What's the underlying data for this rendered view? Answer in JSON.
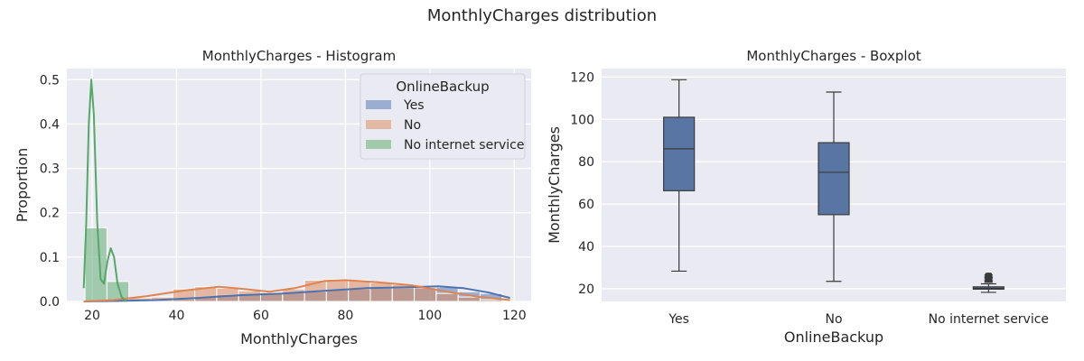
{
  "figure": {
    "title": "MonthlyCharges distribution"
  },
  "colors": {
    "panel_bg": "#EAEAF2",
    "grid": "#FFFFFF",
    "text": "#262626",
    "box_edge": "#3A3A3A"
  },
  "chart_data": [
    {
      "type": "histogram",
      "title": "MonthlyCharges - Histogram",
      "xlabel": "MonthlyCharges",
      "ylabel": "Proportion",
      "xlim": [
        14,
        124
      ],
      "ylim": [
        0,
        0.525
      ],
      "xticks": [
        "20",
        "40",
        "60",
        "80",
        "100",
        "120"
      ],
      "yticks": [
        "0.0",
        "0.1",
        "0.2",
        "0.3",
        "0.4",
        "0.5"
      ],
      "grid": true,
      "legend": {
        "title": "OnlineBackup",
        "placement": "top-right"
      },
      "bin_width": 5.2,
      "series": [
        {
          "name": "Yes",
          "color": "#4C72B0",
          "bins": [
            {
              "x0": 18.3,
              "h": 0.0
            },
            {
              "x0": 23.5,
              "h": 0.0
            },
            {
              "x0": 28.7,
              "h": 0.002
            },
            {
              "x0": 33.9,
              "h": 0.003
            },
            {
              "x0": 39.1,
              "h": 0.005
            },
            {
              "x0": 44.3,
              "h": 0.01
            },
            {
              "x0": 49.5,
              "h": 0.015
            },
            {
              "x0": 54.7,
              "h": 0.018
            },
            {
              "x0": 59.9,
              "h": 0.02
            },
            {
              "x0": 65.1,
              "h": 0.02
            },
            {
              "x0": 70.3,
              "h": 0.022
            },
            {
              "x0": 75.5,
              "h": 0.026
            },
            {
              "x0": 80.7,
              "h": 0.028
            },
            {
              "x0": 85.9,
              "h": 0.03
            },
            {
              "x0": 91.1,
              "h": 0.03
            },
            {
              "x0": 96.3,
              "h": 0.03
            },
            {
              "x0": 101.5,
              "h": 0.032
            },
            {
              "x0": 106.7,
              "h": 0.022
            },
            {
              "x0": 111.9,
              "h": 0.018
            }
          ],
          "kde": [
            [
              18,
              0.0
            ],
            [
              25,
              0.001
            ],
            [
              35,
              0.003
            ],
            [
              45,
              0.008
            ],
            [
              55,
              0.014
            ],
            [
              65,
              0.018
            ],
            [
              75,
              0.024
            ],
            [
              85,
              0.03
            ],
            [
              95,
              0.032
            ],
            [
              102,
              0.034
            ],
            [
              108,
              0.03
            ],
            [
              114,
              0.02
            ],
            [
              119,
              0.008
            ]
          ]
        },
        {
          "name": "No",
          "color": "#DD8452",
          "bins": [
            {
              "x0": 18.3,
              "h": 0.0
            },
            {
              "x0": 23.5,
              "h": 0.002
            },
            {
              "x0": 28.7,
              "h": 0.008
            },
            {
              "x0": 33.9,
              "h": 0.01
            },
            {
              "x0": 39.1,
              "h": 0.028
            },
            {
              "x0": 44.3,
              "h": 0.033
            },
            {
              "x0": 49.5,
              "h": 0.03
            },
            {
              "x0": 54.7,
              "h": 0.024
            },
            {
              "x0": 59.9,
              "h": 0.02
            },
            {
              "x0": 65.1,
              "h": 0.028
            },
            {
              "x0": 70.3,
              "h": 0.048
            },
            {
              "x0": 75.5,
              "h": 0.05
            },
            {
              "x0": 80.7,
              "h": 0.048
            },
            {
              "x0": 85.9,
              "h": 0.042
            },
            {
              "x0": 91.1,
              "h": 0.038
            },
            {
              "x0": 96.3,
              "h": 0.032
            },
            {
              "x0": 101.5,
              "h": 0.018
            },
            {
              "x0": 106.7,
              "h": 0.01
            },
            {
              "x0": 111.9,
              "h": 0.004
            }
          ],
          "kde": [
            [
              18,
              0.0
            ],
            [
              25,
              0.003
            ],
            [
              33,
              0.012
            ],
            [
              42,
              0.025
            ],
            [
              50,
              0.033
            ],
            [
              56,
              0.028
            ],
            [
              62,
              0.022
            ],
            [
              68,
              0.03
            ],
            [
              75,
              0.046
            ],
            [
              80,
              0.048
            ],
            [
              88,
              0.043
            ],
            [
              96,
              0.036
            ],
            [
              104,
              0.022
            ],
            [
              112,
              0.01
            ],
            [
              119,
              0.003
            ]
          ]
        },
        {
          "name": "No internet service",
          "color": "#55A868",
          "bins": [
            {
              "x0": 18.3,
              "h": 0.166
            },
            {
              "x0": 23.5,
              "h": 0.045
            },
            {
              "x0": 28.7,
              "h": 0.0
            }
          ],
          "kde": [
            [
              18,
              0.03
            ],
            [
              18.6,
              0.18
            ],
            [
              19.2,
              0.4
            ],
            [
              19.8,
              0.5
            ],
            [
              20.4,
              0.42
            ],
            [
              21.2,
              0.18
            ],
            [
              22.0,
              0.05
            ],
            [
              22.8,
              0.04
            ],
            [
              23.6,
              0.09
            ],
            [
              24.4,
              0.12
            ],
            [
              25.2,
              0.1
            ],
            [
              26.0,
              0.04
            ],
            [
              27,
              0.01
            ],
            [
              28,
              0.0
            ]
          ]
        }
      ]
    },
    {
      "type": "boxplot",
      "title": "MonthlyCharges - Boxplot",
      "xlabel": "OnlineBackup",
      "ylabel": "MonthlyCharges",
      "ylim": [
        14,
        124
      ],
      "yticks": [
        "20",
        "40",
        "60",
        "80",
        "100",
        "120"
      ],
      "grid": true,
      "categories": [
        "Yes",
        "No",
        "No internet service"
      ],
      "box_color": "#5875A4",
      "boxes": [
        {
          "category": "Yes",
          "whisker_low": 28.3,
          "q1": 66.3,
          "median": 86.1,
          "q3": 101.0,
          "whisker_high": 118.75,
          "outliers": []
        },
        {
          "category": "No",
          "whisker_low": 23.5,
          "q1": 55.0,
          "median": 75.0,
          "q3": 89.0,
          "whisker_high": 112.9,
          "outliers": []
        },
        {
          "category": "No internet service",
          "whisker_low": 18.3,
          "q1": 19.8,
          "median": 20.2,
          "q3": 20.9,
          "whisker_high": 22.3,
          "outliers": [
            23.0,
            23.6,
            24.2,
            24.8,
            25.3,
            25.9,
            26.5
          ]
        }
      ]
    }
  ]
}
